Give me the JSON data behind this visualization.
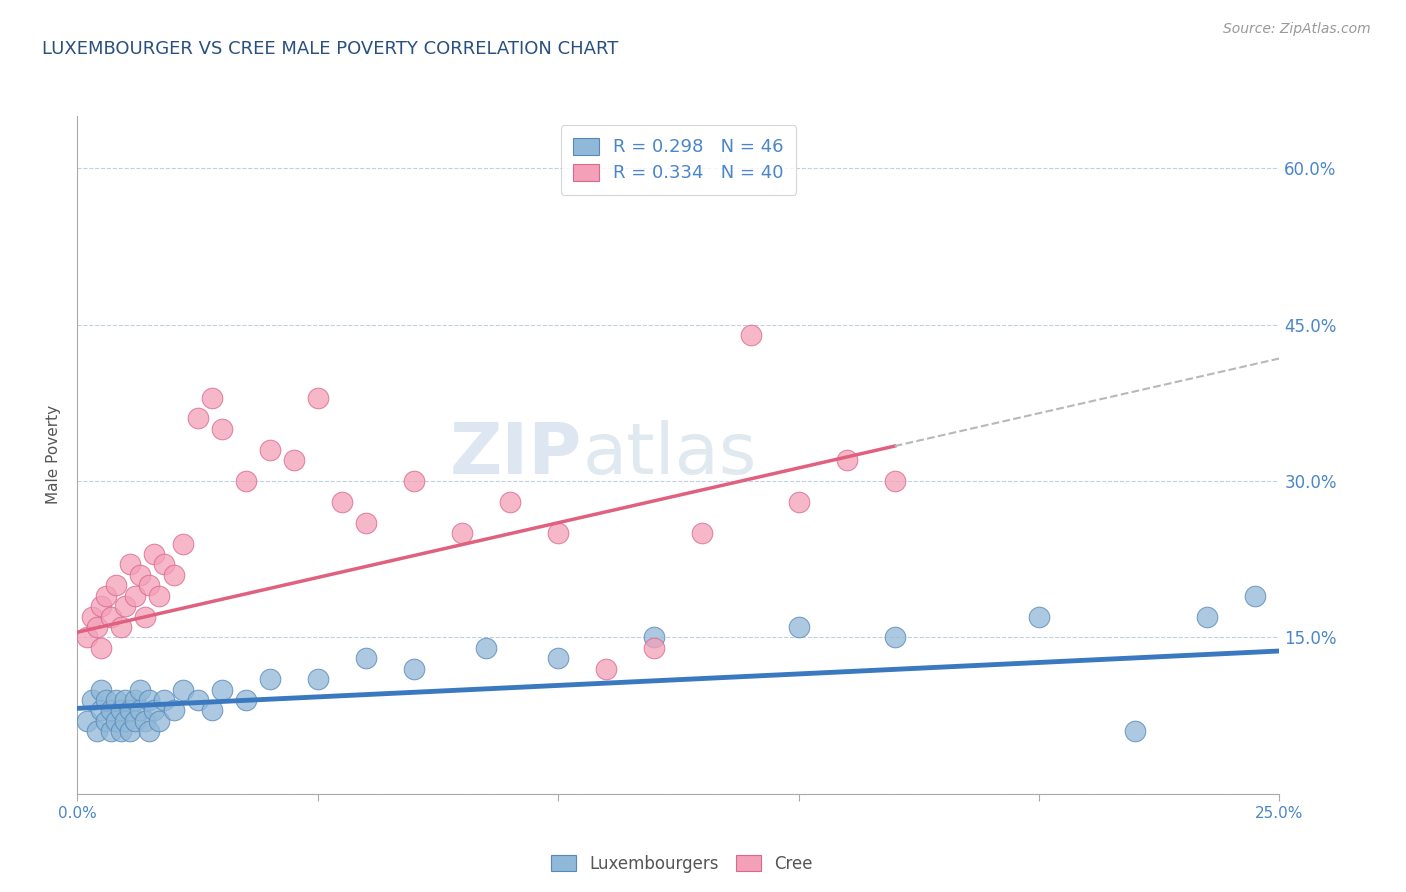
{
  "title": "LUXEMBOURGER VS CREE MALE POVERTY CORRELATION CHART",
  "source": "Source: ZipAtlas.com",
  "ylabel": "Male Poverty",
  "xlim": [
    0.0,
    0.25
  ],
  "ylim": [
    0.0,
    0.65
  ],
  "x_ticks": [
    0.0,
    0.05,
    0.1,
    0.15,
    0.2,
    0.25
  ],
  "y_ticks": [
    0.0,
    0.15,
    0.3,
    0.45,
    0.6
  ],
  "y_tick_labels": [
    "",
    "15.0%",
    "30.0%",
    "45.0%",
    "60.0%"
  ],
  "legend_entries": [
    {
      "label": "R = 0.298   N = 46",
      "color": "#a8c4e0"
    },
    {
      "label": "R = 0.334   N = 40",
      "color": "#f4aabc"
    }
  ],
  "legend_bottom": [
    "Luxembourgers",
    "Cree"
  ],
  "lux_color": "#90b8d8",
  "cree_color": "#f4a0b8",
  "lux_edge_color": "#5888b8",
  "cree_edge_color": "#d86890",
  "lux_trend_color": "#3a78c0",
  "cree_trend_color": "#e06080",
  "dashed_color": "#b8b8b8",
  "background_color": "#ffffff",
  "grid_color": "#c0d0e0",
  "watermark": "ZIPatlas",
  "lux_scatter_x": [
    0.002,
    0.003,
    0.004,
    0.005,
    0.005,
    0.006,
    0.006,
    0.007,
    0.007,
    0.008,
    0.008,
    0.009,
    0.009,
    0.01,
    0.01,
    0.011,
    0.011,
    0.012,
    0.012,
    0.013,
    0.013,
    0.014,
    0.015,
    0.015,
    0.016,
    0.017,
    0.018,
    0.02,
    0.022,
    0.025,
    0.028,
    0.03,
    0.035,
    0.04,
    0.05,
    0.06,
    0.07,
    0.085,
    0.1,
    0.12,
    0.15,
    0.17,
    0.2,
    0.22,
    0.235,
    0.245
  ],
  "lux_scatter_y": [
    0.07,
    0.09,
    0.06,
    0.08,
    0.1,
    0.07,
    0.09,
    0.06,
    0.08,
    0.07,
    0.09,
    0.06,
    0.08,
    0.07,
    0.09,
    0.08,
    0.06,
    0.09,
    0.07,
    0.08,
    0.1,
    0.07,
    0.09,
    0.06,
    0.08,
    0.07,
    0.09,
    0.08,
    0.1,
    0.09,
    0.08,
    0.1,
    0.09,
    0.11,
    0.11,
    0.13,
    0.12,
    0.14,
    0.13,
    0.15,
    0.16,
    0.15,
    0.17,
    0.06,
    0.17,
    0.19
  ],
  "cree_scatter_x": [
    0.002,
    0.003,
    0.004,
    0.005,
    0.005,
    0.006,
    0.007,
    0.008,
    0.009,
    0.01,
    0.011,
    0.012,
    0.013,
    0.014,
    0.015,
    0.016,
    0.017,
    0.018,
    0.02,
    0.022,
    0.025,
    0.028,
    0.03,
    0.035,
    0.04,
    0.045,
    0.05,
    0.055,
    0.06,
    0.07,
    0.08,
    0.09,
    0.1,
    0.11,
    0.12,
    0.13,
    0.14,
    0.15,
    0.16,
    0.17
  ],
  "cree_scatter_y": [
    0.15,
    0.17,
    0.16,
    0.18,
    0.14,
    0.19,
    0.17,
    0.2,
    0.16,
    0.18,
    0.22,
    0.19,
    0.21,
    0.17,
    0.2,
    0.23,
    0.19,
    0.22,
    0.21,
    0.24,
    0.36,
    0.38,
    0.35,
    0.3,
    0.33,
    0.32,
    0.38,
    0.28,
    0.26,
    0.3,
    0.25,
    0.28,
    0.25,
    0.12,
    0.14,
    0.25,
    0.44,
    0.28,
    0.32,
    0.3
  ]
}
